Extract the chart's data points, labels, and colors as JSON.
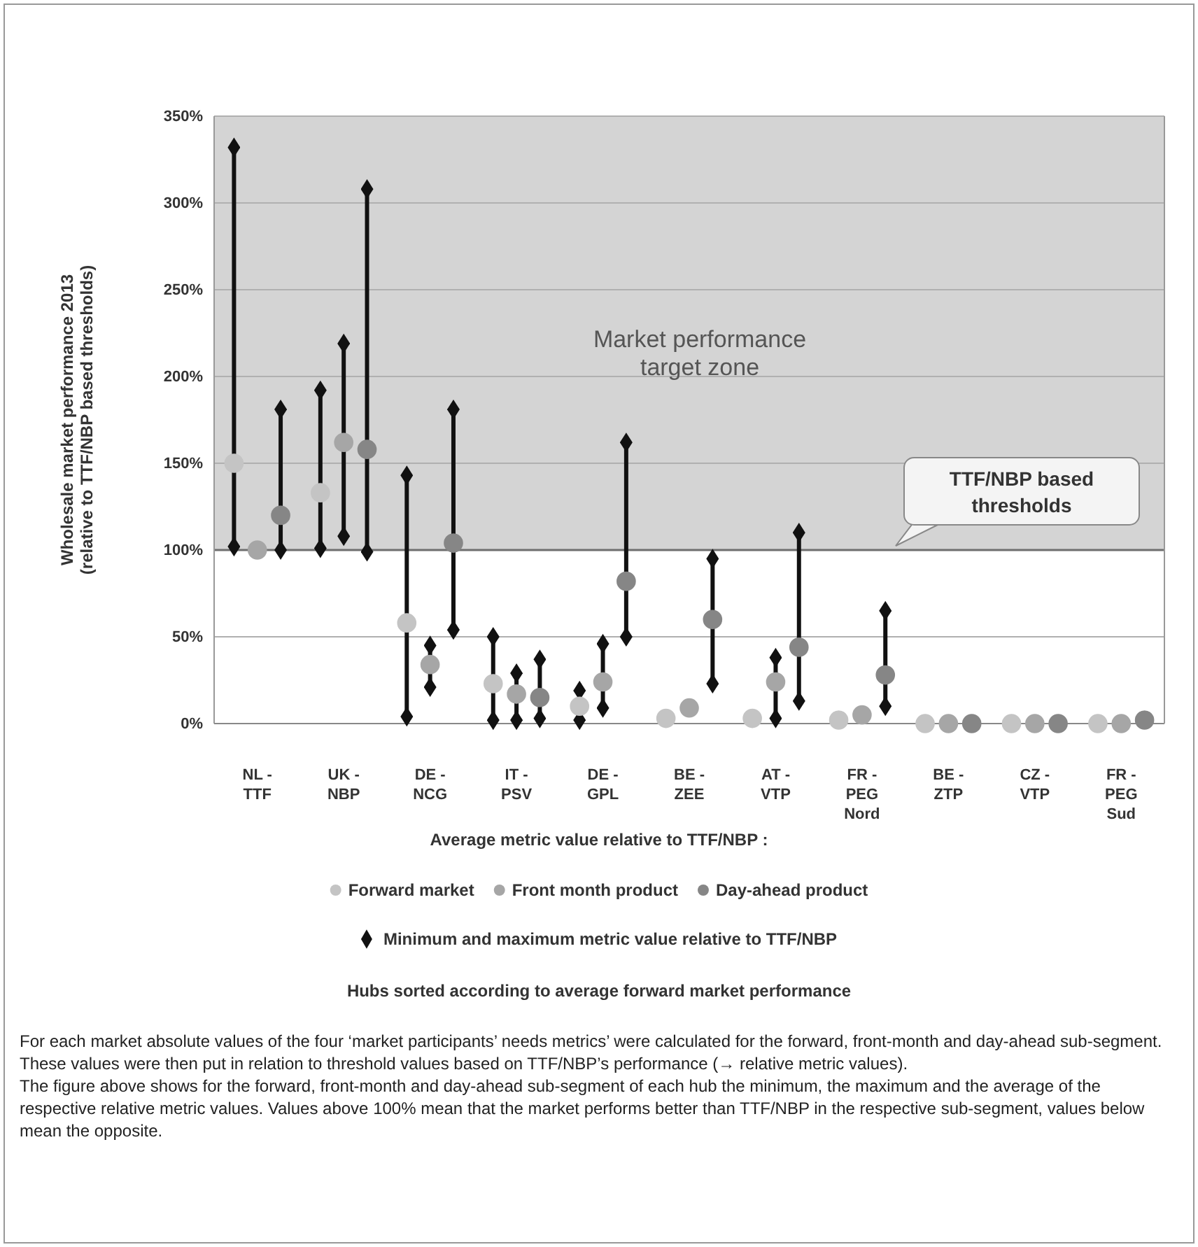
{
  "chart_data": {
    "type": "scatter",
    "ylabel": "Wholesale market performance 2013\n(relative to TTF/NBP based thresholds)",
    "legend_title": "Average metric value relative to TTF/NBP :",
    "categories": [
      "NL -\nTTF",
      "UK -\nNBP",
      "DE -\nNCG",
      "IT -\nPSV",
      "DE -\nGPL",
      "BE -\nZEE",
      "AT -\nVTP",
      "FR -\nPEG\nNord",
      "BE -\nZTP",
      "CZ -\nVTP",
      "FR -\nPEG\nSud"
    ],
    "ylim": [
      0,
      350
    ],
    "yticks": [
      {
        "value": 0,
        "label": "0%"
      },
      {
        "value": 50,
        "label": "50%"
      },
      {
        "value": 100,
        "label": "100%"
      },
      {
        "value": 150,
        "label": "150%"
      },
      {
        "value": 200,
        "label": "200%"
      },
      {
        "value": 250,
        "label": "250%"
      },
      {
        "value": 300,
        "label": "300%"
      },
      {
        "value": 350,
        "label": "350%"
      }
    ],
    "grid": "y",
    "legend": "bottom",
    "marker": "circle",
    "series": [
      {
        "name": "Forward market",
        "color": "#c4c4c4",
        "values": [
          150,
          133,
          58,
          23,
          10,
          3,
          3,
          2,
          0,
          0,
          0
        ],
        "errors": [
          [
            102,
            332
          ],
          [
            101,
            192
          ],
          [
            4,
            143
          ],
          [
            2,
            50
          ],
          [
            2,
            19
          ],
          null,
          null,
          null,
          null,
          null,
          null
        ]
      },
      {
        "name": "Front month product",
        "color": "#a6a6a6",
        "values": [
          100,
          162,
          34,
          17,
          24,
          9,
          24,
          5,
          0,
          0,
          0
        ],
        "errors": [
          null,
          [
            108,
            219
          ],
          [
            21,
            45
          ],
          [
            2,
            29
          ],
          [
            9,
            46
          ],
          null,
          [
            3,
            38
          ],
          null,
          null,
          null,
          null
        ]
      },
      {
        "name": "Day-ahead product",
        "color": "#868686",
        "values": [
          120,
          158,
          104,
          15,
          82,
          60,
          44,
          28,
          0,
          0,
          2
        ],
        "errors": [
          [
            100,
            181
          ],
          [
            99,
            308
          ],
          [
            54,
            181
          ],
          [
            3,
            37
          ],
          [
            50,
            162
          ],
          [
            23,
            95
          ],
          [
            13,
            110
          ],
          [
            10,
            65
          ],
          null,
          null,
          null
        ]
      }
    ],
    "bands": [
      {
        "axis": "y",
        "from": 100,
        "to": 350,
        "label": "Market performance\ntarget zone",
        "color": "#d4d4d4"
      }
    ],
    "ref_lines": [
      {
        "axis": "y",
        "value": 100,
        "label": "TTF/NBP based\nthresholds",
        "color": "#6e6e6e"
      }
    ],
    "annotations": [
      "Minimum and maximum metric value relative to TTF/NBP",
      "Hubs sorted according to average forward market performance",
      "For each market absolute values of the four ‘market participants’ needs metrics’ were calculated for the forward, front-month and day-ahead sub-segment. These values were then put in relation to threshold values based on TTF/NBP’s performance (→ relative metric values).",
      "The figure above shows for the forward, front-month and day-ahead sub-segment of each hub the minimum, the maximum and the average of the respective relative metric values. Values above 100% mean that the market performs better than TTF/NBP in the respective sub-segment, values below mean the opposite."
    ]
  }
}
